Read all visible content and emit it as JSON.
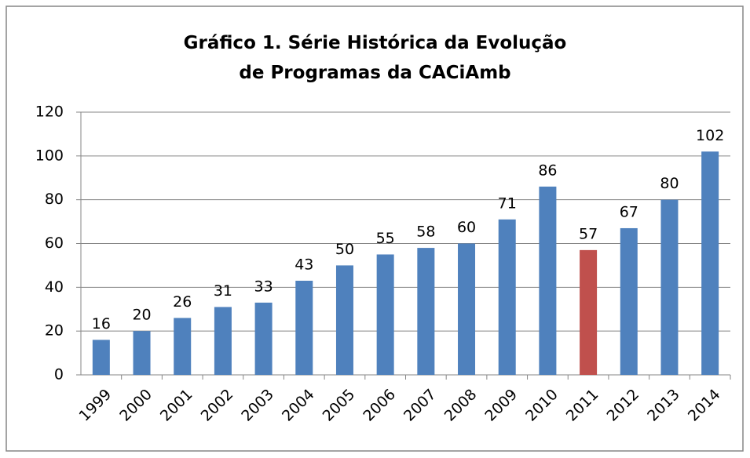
{
  "chart_data": {
    "type": "bar",
    "title": "Gráfico 1. Série Histórica da Evolução de Programas da CACiAmb",
    "categories": [
      "1999",
      "2000",
      "2001",
      "2002",
      "2003",
      "2004",
      "2005",
      "2006",
      "2007",
      "2008",
      "2009",
      "2010",
      "2011",
      "2012",
      "2013",
      "2014"
    ],
    "values": [
      16,
      20,
      26,
      31,
      33,
      43,
      50,
      55,
      58,
      60,
      71,
      86,
      57,
      67,
      80,
      102
    ],
    "colors": [
      "#4f81bd",
      "#4f81bd",
      "#4f81bd",
      "#4f81bd",
      "#4f81bd",
      "#4f81bd",
      "#4f81bd",
      "#4f81bd",
      "#4f81bd",
      "#4f81bd",
      "#4f81bd",
      "#4f81bd",
      "#c0504d",
      "#4f81bd",
      "#4f81bd",
      "#4f81bd"
    ],
    "ylim": [
      0,
      120
    ],
    "yticks": [
      0,
      20,
      40,
      60,
      80,
      100,
      120
    ],
    "grid": true
  }
}
